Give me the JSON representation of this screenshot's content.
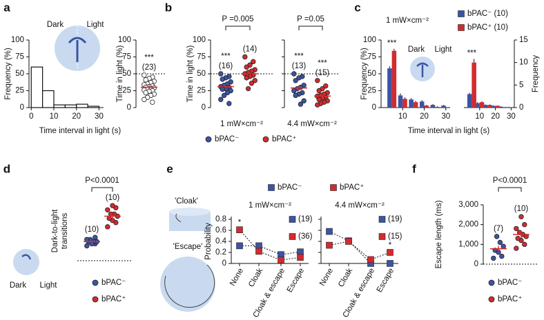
{
  "chart_data": [
    {
      "type": "histogram",
      "panel": "a",
      "cartoon_labels": [
        "Dark",
        "Light"
      ],
      "xlabel": "Time interval in light (s)",
      "ylabel": "Frequency (%)",
      "bins": [
        0,
        5,
        10,
        15,
        20,
        25,
        30
      ],
      "counts": [
        60,
        25,
        4,
        4,
        5,
        2
      ],
      "xlim": [
        -1,
        32
      ],
      "xticks": [
        0,
        10,
        20,
        30
      ],
      "ylim": [
        0,
        100
      ],
      "yticks": [
        0,
        25,
        50,
        75,
        100
      ],
      "color": "#ffffff"
    },
    {
      "type": "strip",
      "ylabel": "Time in light (%)",
      "ylim": [
        0,
        100
      ],
      "yticks": [
        0,
        25,
        50,
        75,
        100
      ],
      "reference_line": 50,
      "facets": [
        {
          "groups": [
            {
              "annotation": "***",
              "n_label": "(23)",
              "color": "#ffffff",
              "values": [
                48,
                45,
                43,
                41,
                39,
                37,
                35,
                34,
                32,
                31,
                30,
                29,
                28,
                27,
                26,
                25,
                24,
                22,
                20,
                18,
                15,
                12,
                8
              ],
              "mean": 30,
              "sem": 3
            }
          ]
        }
      ]
    },
    {
      "type": "strip",
      "panel": "b",
      "ylabel": "Time in light (%)",
      "ylim": [
        0,
        100
      ],
      "yticks": [
        0,
        25,
        50,
        75,
        100
      ],
      "reference_line": 50,
      "legend": [
        {
          "name": "bPAC⁻",
          "color": "#3b54a5"
        },
        {
          "name": "bPAC⁺",
          "color": "#d22b2f"
        }
      ],
      "facets": [
        {
          "label": "1 mW×cm⁻²",
          "p_label": "P =0.005",
          "groups": [
            {
              "annotation": "***",
              "n_label": "(16)",
              "color": "#3b54a5",
              "values": [
                50,
                46,
                44,
                42,
                38,
                35,
                33,
                31,
                30,
                28,
                27,
                25,
                22,
                18,
                12,
                6
              ],
              "mean": 31,
              "sem": 3
            },
            {
              "n_label": "(14)",
              "color": "#d22b2f",
              "values": [
                75,
                68,
                63,
                60,
                56,
                54,
                52,
                50,
                48,
                46,
                44,
                40,
                36,
                28
              ],
              "mean": 50,
              "sem": 3
            }
          ]
        },
        {
          "label": "4.4 mW×cm⁻²",
          "p_label": "P =0.05",
          "groups": [
            {
              "annotation": "***",
              "n_label": "(13)",
              "color": "#3b54a5",
              "values": [
                50,
                46,
                44,
                40,
                33,
                30,
                28,
                25,
                22,
                20,
                18,
                10,
                5
              ],
              "mean": 29,
              "sem": 4
            },
            {
              "annotation": "***",
              "n_label": "(15)",
              "color": "#d22b2f",
              "values": [
                40,
                32,
                28,
                25,
                22,
                20,
                18,
                17,
                15,
                14,
                12,
                10,
                8,
                6,
                4
              ],
              "mean": 17,
              "sem": 3
            }
          ]
        }
      ]
    },
    {
      "type": "bar",
      "panel": "c",
      "title": "1 mW×cm⁻²",
      "cartoon_labels": [
        "Dark",
        "Light"
      ],
      "legend": [
        {
          "name": "bPAC⁻ (10)",
          "color": "#3b54a5"
        },
        {
          "name": "bPAC⁺ (10)",
          "color": "#d22b2f"
        }
      ],
      "xlabel": "Time interval in light (s)",
      "ylabel": "Frequency (%)",
      "y2label": "Frequency",
      "x": [
        5,
        10,
        15,
        20,
        25,
        30
      ],
      "xlim": [
        0,
        32
      ],
      "xticks": [
        10,
        20,
        30
      ],
      "ylim": [
        0,
        100
      ],
      "yticks": [
        0,
        25,
        50,
        75,
        100
      ],
      "y2lim": [
        0,
        15
      ],
      "y2ticks": [
        0,
        5,
        10,
        15
      ],
      "facets": [
        {
          "annotations": [
            "***",
            null,
            null,
            null,
            null,
            null
          ],
          "series": [
            {
              "values": [
                58,
                18,
                12,
                9,
                4,
                3
              ],
              "errors": [
                3,
                3,
                2,
                2,
                1,
                1
              ]
            },
            {
              "values": [
                84,
                13,
                8,
                3,
                1,
                0
              ],
              "errors": [
                3,
                2,
                2,
                1,
                1,
                0
              ]
            }
          ]
        },
        {
          "axis": "y2",
          "annotations": [
            "***",
            null,
            null,
            null,
            null,
            null
          ],
          "series": [
            {
              "values": [
                3,
                1,
                0.6,
                0.4,
                0.2,
                0.1
              ],
              "errors": [
                0.3,
                0.2,
                0.1,
                0.1,
                0.1,
                0.1
              ]
            },
            {
              "values": [
                10,
                1.2,
                0.6,
                0.4,
                0.1,
                0.1
              ],
              "errors": [
                0.8,
                0.2,
                0.1,
                0.1,
                0.1,
                0.1
              ]
            }
          ]
        }
      ]
    },
    {
      "type": "strip",
      "panel": "d",
      "ylabel": [
        "Dark-to-light",
        "transitions"
      ],
      "cartoon_labels": [
        "Dark",
        "Light"
      ],
      "ylim": [
        0,
        14
      ],
      "reference_line": 0,
      "legend": [
        {
          "name": "bPAC⁻",
          "color": "#3b54a5"
        },
        {
          "name": "bPAC⁺",
          "color": "#d22b2f"
        }
      ],
      "facets": [
        {
          "p_label": "P<0.0001",
          "groups": [
            {
              "n_label": "(10)",
              "color": "#3b54a5",
              "values": [
                3.5,
                4,
                4,
                4.5,
                4.5,
                4.5,
                5,
                5,
                5.5,
                4
              ],
              "mean": 4.5,
              "sem": 0.3
            },
            {
              "n_label": "(10)",
              "color": "#d22b2f",
              "values": [
                8,
                9,
                9.5,
                10,
                10.5,
                11,
                11,
                12,
                12.5,
                13
              ],
              "mean": 10.5,
              "sem": 0.5
            }
          ]
        }
      ]
    },
    {
      "type": "line",
      "panel": "e",
      "cartoon_labels": [
        "'Cloak'",
        "'Escape'"
      ],
      "ylabel": "Probability",
      "legend": [
        {
          "name": "bPAC⁻",
          "color": "#3b54a5"
        },
        {
          "name": "bPAC⁺",
          "color": "#d22b2f"
        }
      ],
      "categories": [
        "None",
        "Cloak",
        "Cloak & escape",
        "Escape"
      ],
      "ylim": [
        0,
        0.8
      ],
      "yticks": [
        0,
        0.2,
        0.4,
        0.6,
        0.8
      ],
      "facets": [
        {
          "title": "1 mW×cm⁻²",
          "n_labels": [
            "(19)",
            "(36)"
          ],
          "annotations": [
            "*",
            null,
            null,
            null
          ],
          "series": [
            {
              "values": [
                0.32,
                0.32,
                0.16,
                0.21
              ]
            },
            {
              "values": [
                0.61,
                0.22,
                0.06,
                0.11
              ]
            }
          ]
        },
        {
          "title": "4.4 mW×cm⁻²",
          "n_labels": [
            "(19)",
            "(15)"
          ],
          "annotations": [
            null,
            null,
            null,
            "*"
          ],
          "series": [
            {
              "values": [
                0.58,
                0.41,
                0,
                0
              ]
            },
            {
              "values": [
                0.33,
                0.4,
                0.07,
                0.2
              ]
            }
          ]
        }
      ]
    },
    {
      "type": "strip",
      "panel": "f",
      "ylabel": "Escape length (ms)",
      "ylim": [
        0,
        3000
      ],
      "yticks": [
        0,
        {
          "value": 1000,
          "label": "1,000"
        },
        {
          "value": 2000,
          "label": "2,000"
        },
        {
          "value": 3000,
          "label": "3,000"
        }
      ],
      "reference_line": 0,
      "legend": [
        {
          "name": "bPAC⁻",
          "color": "#3b54a5"
        },
        {
          "name": "bPAC⁺",
          "color": "#d22b2f"
        }
      ],
      "facets": [
        {
          "p_label": "P<0.0001",
          "groups": [
            {
              "n_label": "(7)",
              "color": "#3b54a5",
              "values": [
                300,
                400,
                600,
                700,
                900,
                1100,
                1400
              ],
              "mean": 780,
              "sem": 150
            },
            {
              "n_label": "(10)",
              "color": "#d22b2f",
              "values": [
                800,
                1000,
                1200,
                1300,
                1400,
                1500,
                1600,
                1800,
                2000,
                2400
              ],
              "mean": 1500,
              "sem": 160
            }
          ]
        }
      ]
    }
  ]
}
